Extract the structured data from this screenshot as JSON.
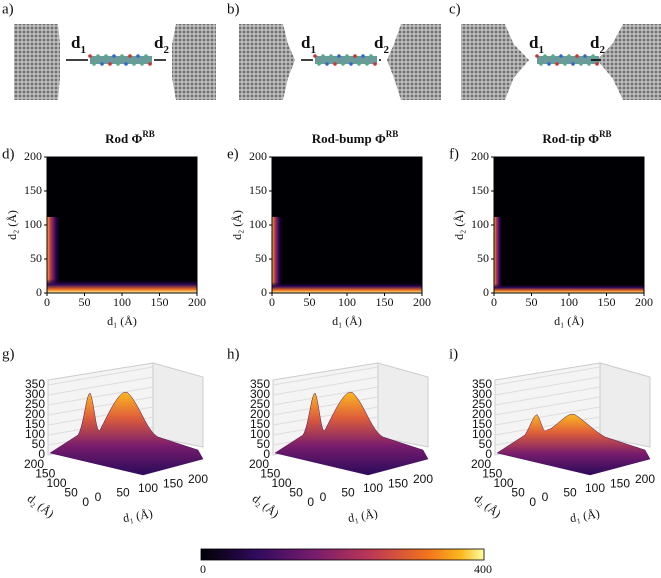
{
  "schematics": [
    {
      "label": "a)",
      "left": "d",
      "left_sub": "1",
      "right": "d",
      "right_sub": "2"
    },
    {
      "label": "b)",
      "left": "d",
      "left_sub": "1",
      "right": "d",
      "right_sub": "2"
    },
    {
      "label": "c)",
      "left": "d",
      "left_sub": "1",
      "right": "d",
      "right_sub": "2"
    }
  ],
  "maps": [
    {
      "label": "d)",
      "title": "Rod Φ",
      "title_sup": "RB"
    },
    {
      "label": "e)",
      "title": "Rod-bump Φ",
      "title_sup": "RB"
    },
    {
      "label": "f)",
      "title": "Rod-tip Φ",
      "title_sup": "RB"
    }
  ],
  "map_axes": {
    "xlim": [
      0,
      200
    ],
    "ylim": [
      0,
      200
    ],
    "xticks": [
      0,
      50,
      100,
      150,
      200
    ],
    "yticks": [
      0,
      50,
      100,
      150,
      200
    ],
    "xlabel": "d₁ (Å)",
    "ylabel": "d₂ (Å)"
  },
  "surfaces": [
    {
      "label": "g)"
    },
    {
      "label": "h)"
    },
    {
      "label": "i)"
    }
  ],
  "surface_axes": {
    "zlim": [
      0,
      350
    ],
    "zticks": [
      0,
      50,
      100,
      150,
      200,
      250,
      300,
      350
    ],
    "d2lim": [
      0,
      200
    ],
    "d2ticks": [
      200,
      150,
      100,
      50,
      0
    ],
    "d1lim": [
      0,
      200
    ],
    "d1ticks": [
      0,
      50,
      100,
      150,
      200
    ],
    "xlabel": "d₁ (Å)",
    "ylabel": "d₂ (Å)"
  },
  "colorbar": {
    "min": 0,
    "max": 400
  }
}
